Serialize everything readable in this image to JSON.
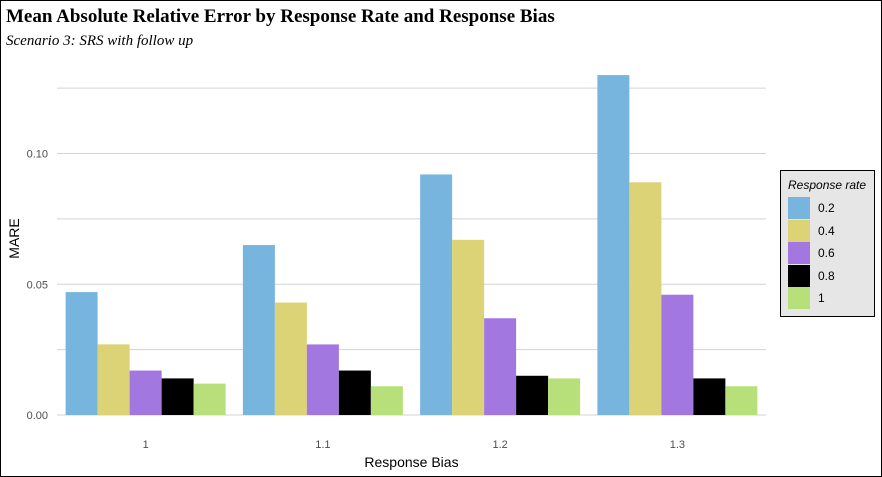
{
  "chart_data": {
    "type": "bar",
    "title": "Mean Absolute Relative Error by Response Rate and Response Bias",
    "subtitle": "Scenario 3: SRS with follow up",
    "xlabel": "Response Bias",
    "ylabel": "MARE",
    "categories": [
      "1",
      "1.1",
      "1.2",
      "1.3"
    ],
    "yticks": [
      "0.00",
      "0.05",
      "0.10"
    ],
    "ylim": [
      0,
      0.135
    ],
    "grid": true,
    "legend": {
      "title": "Response rate",
      "position": "right"
    },
    "series": [
      {
        "name": "0.2",
        "color": "#77b5de",
        "values": [
          0.047,
          0.065,
          0.092,
          0.13
        ]
      },
      {
        "name": "0.4",
        "color": "#dcd276",
        "values": [
          0.027,
          0.043,
          0.067,
          0.089
        ]
      },
      {
        "name": "0.6",
        "color": "#a377e0",
        "values": [
          0.017,
          0.027,
          0.037,
          0.046
        ]
      },
      {
        "name": "0.8",
        "color": "#000000",
        "values": [
          0.014,
          0.017,
          0.015,
          0.014
        ]
      },
      {
        "name": "1",
        "color": "#b7e07a",
        "values": [
          0.012,
          0.011,
          0.014,
          0.011
        ]
      }
    ]
  }
}
